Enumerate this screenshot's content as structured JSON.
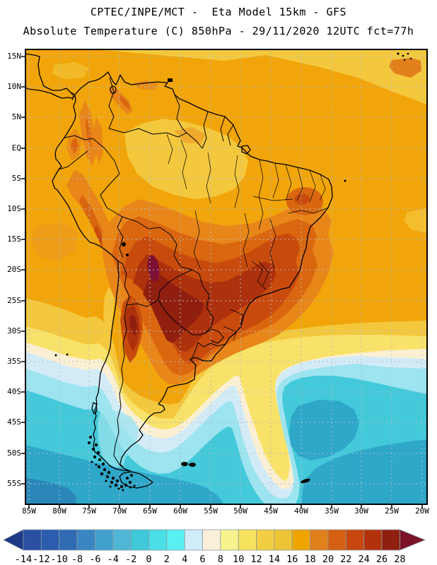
{
  "header": {
    "line1": "CPTEC/INPE/MCT -  Eta Model 15km - GFS",
    "line2": "Absolute Temperature (C) 850hPa - 29/11/2020 12UTC fct=77h"
  },
  "map": {
    "lat_labels": [
      "15N",
      "10N",
      "5N",
      "EQ",
      "5S",
      "10S",
      "15S",
      "20S",
      "25S",
      "30S",
      "35S",
      "40S",
      "45S",
      "50S",
      "55S"
    ],
    "lon_labels": [
      "85W",
      "80W",
      "75W",
      "70W",
      "65W",
      "60W",
      "55W",
      "50W",
      "45W",
      "40W",
      "35W",
      "30W",
      "25W",
      "20W"
    ]
  },
  "colorbar": {
    "unit": "C",
    "tick_labels": [
      "-14",
      "-12",
      "-10",
      "-8",
      "-6",
      "-4",
      "-2",
      "0",
      "2",
      "4",
      "6",
      "8",
      "10",
      "12",
      "14",
      "16",
      "18",
      "20",
      "22",
      "24",
      "26",
      "28"
    ],
    "cell_colors": [
      "#2B4FA2",
      "#2C5CAE",
      "#2F6CB4",
      "#3A86C2",
      "#42A0CC",
      "#4FB6D6",
      "#3FC8D8",
      "#4ADEE6",
      "#58F0F0",
      "#D0ECF8",
      "#FAEFD9",
      "#F9F38F",
      "#F7E25E",
      "#F2CE43",
      "#EDC436",
      "#F0A400",
      "#E2801C",
      "#D56012",
      "#C8470E",
      "#B2320C",
      "#8F1F10"
    ],
    "left_arrow_color": "#1C3A85",
    "right_arrow_color": "#7B1328",
    "grid_color": "#B2BCC6"
  }
}
